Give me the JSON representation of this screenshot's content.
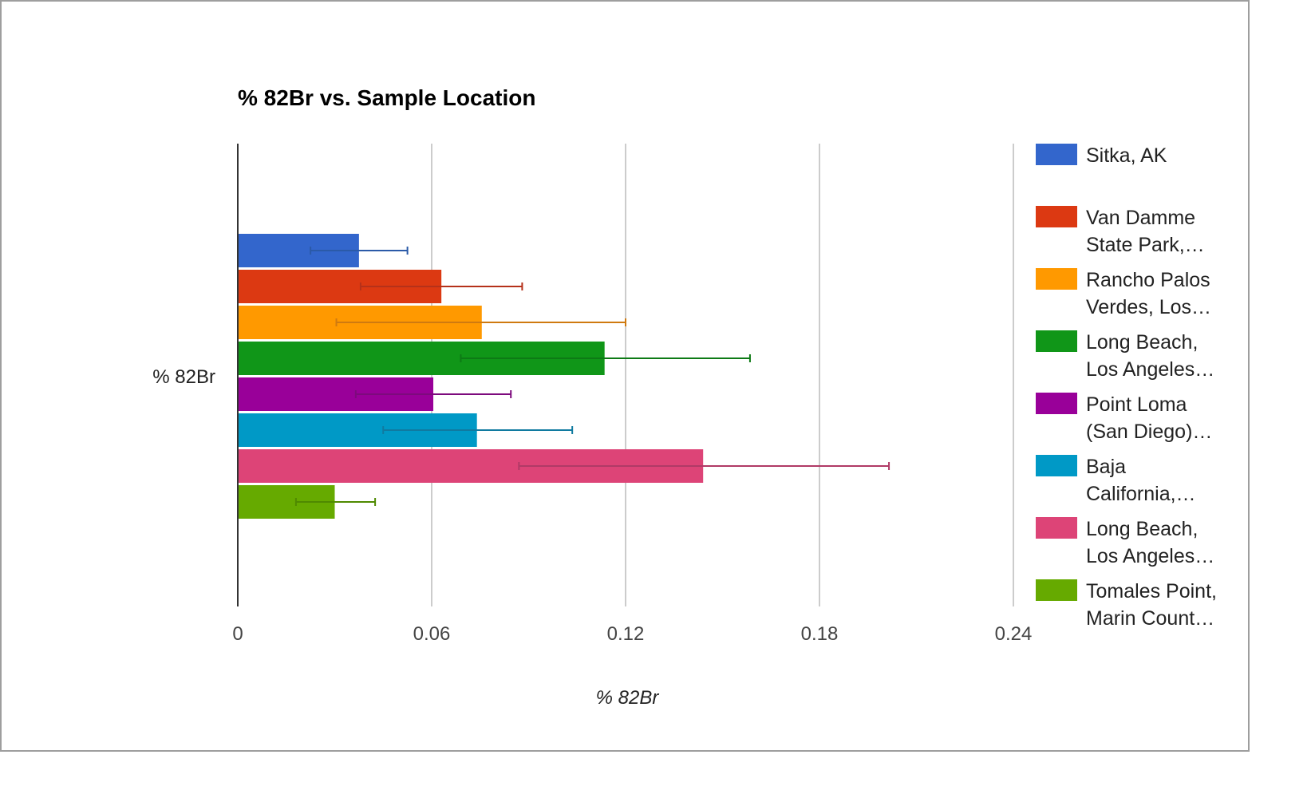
{
  "chart_data": {
    "type": "bar",
    "orientation": "horizontal",
    "title": "% 82Br vs. Sample Location",
    "xlabel": "% 82Br",
    "ylabel": "",
    "categories": [
      "% 82Br"
    ],
    "xlim": [
      0,
      0.24
    ],
    "xticks": [
      "0",
      "0.06",
      "0.12",
      "0.18",
      "0.24"
    ],
    "grid": true,
    "legend_position": "right",
    "series": [
      {
        "name": "Sitka, AK",
        "legend_lines": [
          "Sitka, AK"
        ],
        "value": 0.0375,
        "error_low": 0.0225,
        "error_high": 0.0525,
        "color": "#3366cc"
      },
      {
        "name": "Van Damme State Park,…",
        "legend_lines": [
          "Van Damme",
          "State Park,…"
        ],
        "value": 0.063,
        "error_low": 0.038,
        "error_high": 0.088,
        "color": "#dc3912"
      },
      {
        "name": "Rancho Palos Verdes, Los…",
        "legend_lines": [
          "Rancho Palos",
          "Verdes, Los…"
        ],
        "value": 0.0755,
        "error_low": 0.0305,
        "error_high": 0.12,
        "color": "#ff9900"
      },
      {
        "name": "Long Beach, Los Angeles…",
        "legend_lines": [
          "Long Beach,",
          "Los Angeles…"
        ],
        "value": 0.1135,
        "error_low": 0.069,
        "error_high": 0.1585,
        "color": "#109618"
      },
      {
        "name": "Point Loma (San Diego)…",
        "legend_lines": [
          "Point Loma",
          "(San Diego)…"
        ],
        "value": 0.0605,
        "error_low": 0.0365,
        "error_high": 0.0845,
        "color": "#990099"
      },
      {
        "name": "Baja California,…",
        "legend_lines": [
          "Baja",
          "California,…"
        ],
        "value": 0.074,
        "error_low": 0.045,
        "error_high": 0.1035,
        "color": "#0099c6"
      },
      {
        "name": "Long Beach, Los Angeles…",
        "legend_lines": [
          "Long Beach,",
          "Los Angeles…"
        ],
        "value": 0.144,
        "error_low": 0.087,
        "error_high": 0.2015,
        "color": "#dd4477"
      },
      {
        "name": "Tomales Point, Marin Count…",
        "legend_lines": [
          "Tomales Point,",
          "Marin Count…"
        ],
        "value": 0.03,
        "error_low": 0.018,
        "error_high": 0.0425,
        "color": "#66aa00"
      }
    ],
    "error_bar_colors": [
      "#2b5aa8",
      "#b5311a",
      "#cf7a10",
      "#0d7a15",
      "#7d0a7d",
      "#107aa0",
      "#b03a66",
      "#4f8a00"
    ]
  }
}
